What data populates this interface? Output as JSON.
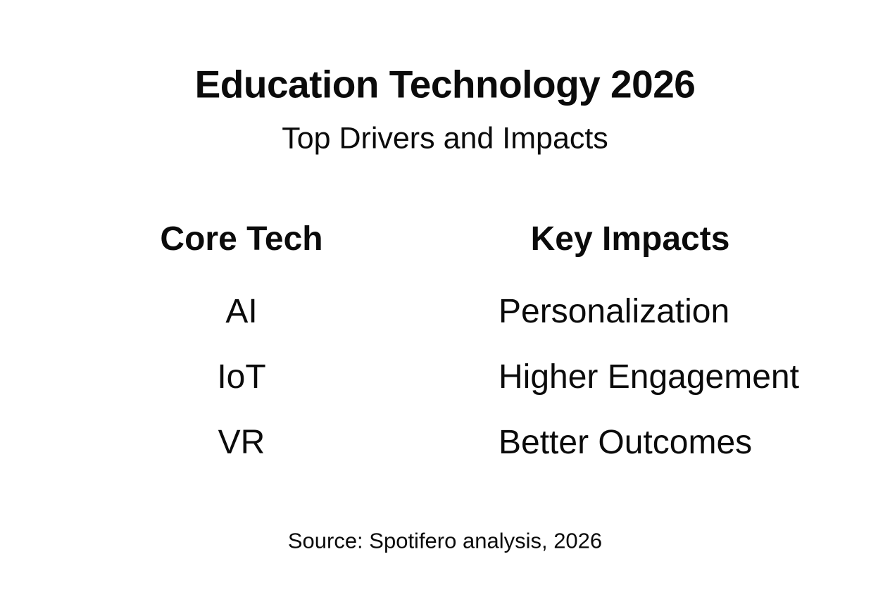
{
  "slide": {
    "title": "Education Technology 2026",
    "subtitle": "Top Drivers and Impacts",
    "source": "Source: Spotifero analysis, 2026"
  },
  "table": {
    "headers": {
      "tech": "Core Tech",
      "impacts": "Key Impacts"
    },
    "rows": [
      {
        "tech": "AI",
        "impact": "Personalization"
      },
      {
        "tech": "IoT",
        "impact": "Higher Engagement"
      },
      {
        "tech": "VR",
        "impact": "Better Outcomes"
      }
    ]
  },
  "colors": {
    "background": "#ffffff",
    "text": "#0b0b0b"
  },
  "chart_data": {
    "type": "table",
    "title": "Education Technology 2026",
    "subtitle": "Top Drivers and Impacts",
    "columns": [
      "Core Tech",
      "Key Impacts"
    ],
    "rows": [
      [
        "AI",
        "Personalization"
      ],
      [
        "IoT",
        "Higher Engagement"
      ],
      [
        "VR",
        "Better Outcomes"
      ]
    ],
    "source": "Source: Spotifero analysis, 2026",
    "layout_hints": {
      "left_column_alignment": "center",
      "right_column_alignment": "left",
      "grid": false
    }
  }
}
